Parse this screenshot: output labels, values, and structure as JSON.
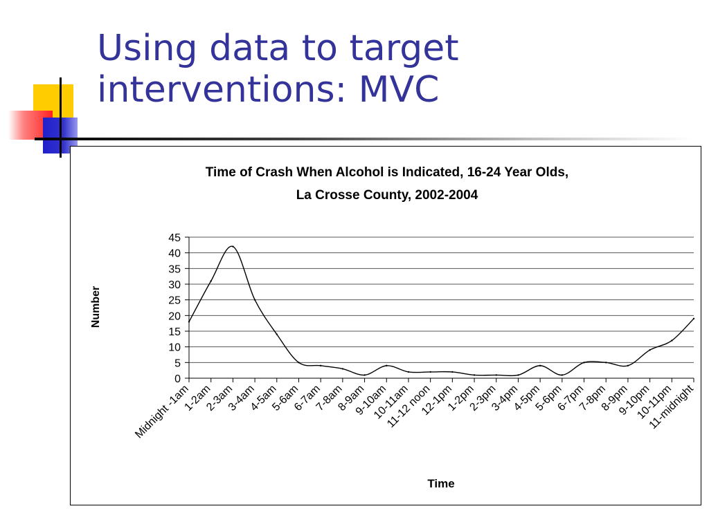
{
  "slide": {
    "title": "Using data to target\ninterventions:  MVC"
  },
  "chart_data": {
    "type": "line",
    "title": "Time of Crash When Alcohol is Indicated, 16-24 Year Olds,",
    "subtitle": "La Crosse County, 2002-2004",
    "xlabel": "Time",
    "ylabel": "Number",
    "ylim": [
      0,
      45
    ],
    "yticks": [
      0,
      5,
      10,
      15,
      20,
      25,
      30,
      35,
      40,
      45
    ],
    "grid": true,
    "categories": [
      "Midnight -1am",
      "1-2am",
      "2-3am",
      "3-4am",
      "4-5am",
      "5-6am",
      "6-7am",
      "7-8am",
      "8-9am",
      "9-10am",
      "10-11am",
      "11-12 noon",
      "12-1pm",
      "1-2pm",
      "2-3pm",
      "3-4pm",
      "4-5pm",
      "5-6pm",
      "6-7pm",
      "7-8pm",
      "8-9pm",
      "9-10pm",
      "10-11pm",
      "11-midnight"
    ],
    "series": [
      {
        "name": "Number",
        "values": [
          18,
          31,
          42,
          25,
          14,
          5,
          4,
          3,
          1,
          4,
          2,
          2,
          2,
          1,
          1,
          1,
          4,
          1,
          5,
          5,
          4,
          9,
          12,
          19
        ]
      }
    ]
  }
}
